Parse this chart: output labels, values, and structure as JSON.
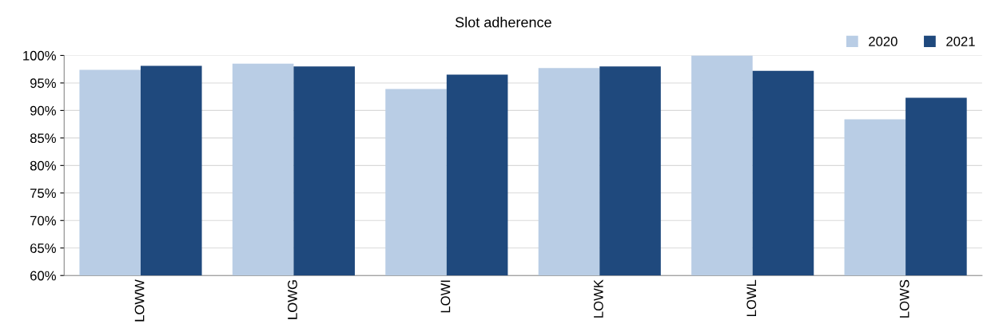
{
  "chart_data": {
    "type": "bar",
    "title": "Slot adherence",
    "categories": [
      "LOWW",
      "LOWG",
      "LOWI",
      "LOWK",
      "LOWL",
      "LOWS"
    ],
    "series": [
      {
        "name": "2020",
        "color": "#b9cde5",
        "values": [
          97.4,
          98.5,
          93.9,
          97.7,
          100,
          88.4
        ]
      },
      {
        "name": "2021",
        "color": "#1f497d",
        "values": [
          98.1,
          98.0,
          96.5,
          98.0,
          97.2,
          92.3
        ]
      }
    ],
    "ylim": [
      60,
      100
    ],
    "yticks": [
      {
        "value": 60,
        "label": "60%"
      },
      {
        "value": 65,
        "label": "65%"
      },
      {
        "value": 70,
        "label": "70%"
      },
      {
        "value": 75,
        "label": "75%"
      },
      {
        "value": 80,
        "label": "80%"
      },
      {
        "value": 85,
        "label": "85%"
      },
      {
        "value": 90,
        "label": "90%"
      },
      {
        "value": 95,
        "label": "95%"
      },
      {
        "value": 100,
        "label": "100%"
      }
    ],
    "grid": "y",
    "legend": "top right"
  }
}
